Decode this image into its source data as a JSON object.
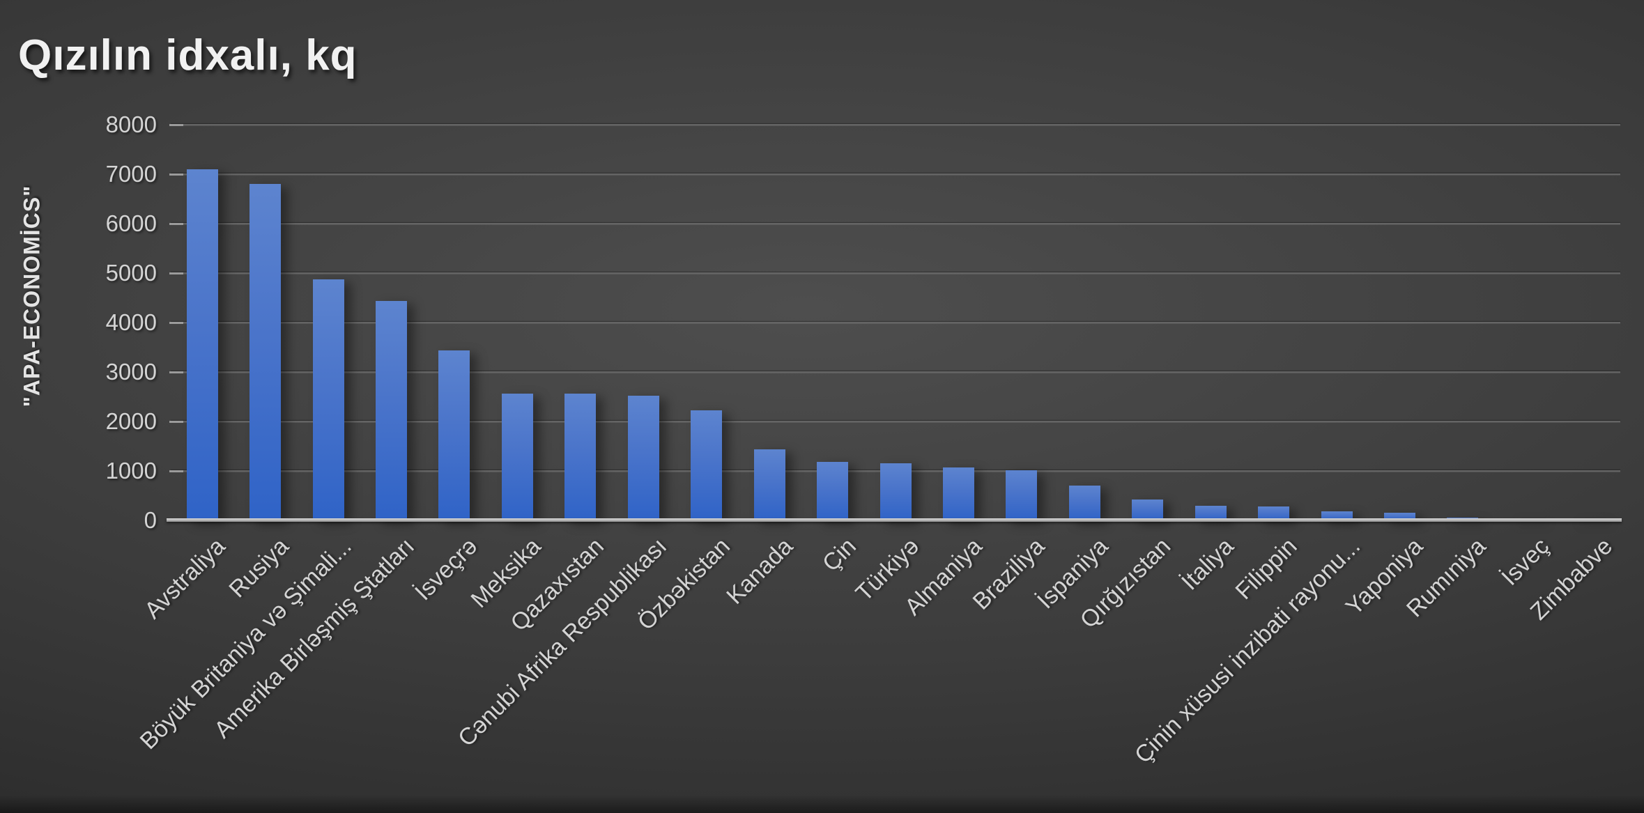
{
  "title": "Qızılın idxalı, kq",
  "y_axis_label": "\"APA-ECONOMİCS\"",
  "colors": {
    "background_center": "#4e4e4e",
    "background_edge": "#242424",
    "bar_top": "#5d84cf",
    "bar_bottom": "#2f63c7",
    "gridline": "#646464",
    "axis_line": "#b5b5b5",
    "text": "#d4d4d4",
    "title_text": "#f1f1f1"
  },
  "chart_data": {
    "type": "bar",
    "title": "Qızılın idxalı, kq",
    "xlabel": "",
    "ylabel": "\"APA-ECONOMİCS\"",
    "ylim": [
      0,
      8000
    ],
    "yticks": [
      0,
      1000,
      2000,
      3000,
      4000,
      5000,
      6000,
      7000,
      8000
    ],
    "grid": true,
    "legend": "none",
    "categories": [
      "Avstraliya",
      "Rusiya",
      "Böyük Britaniya və Şimali...",
      "Amerika Birləşmiş Ştatları",
      "İsveçrə",
      "Meksika",
      "Qazaxıstan",
      "Cənubi Afrika Respublikası",
      "Özbəkistan",
      "Kanada",
      "Çin",
      "Türkiyə",
      "Almaniya",
      "Braziliya",
      "İspaniya",
      "Qırğızıstan",
      "İtaliya",
      "Filippin",
      "Çinin xüsusi inzibati rayonu...",
      "Yaponiya",
      "Rumıniya",
      "İsveç",
      "Zimbabve"
    ],
    "values": [
      7100,
      6800,
      4870,
      4430,
      3430,
      2560,
      2560,
      2520,
      2230,
      1430,
      1180,
      1160,
      1070,
      1020,
      700,
      420,
      300,
      280,
      190,
      150,
      50,
      30,
      15
    ]
  }
}
